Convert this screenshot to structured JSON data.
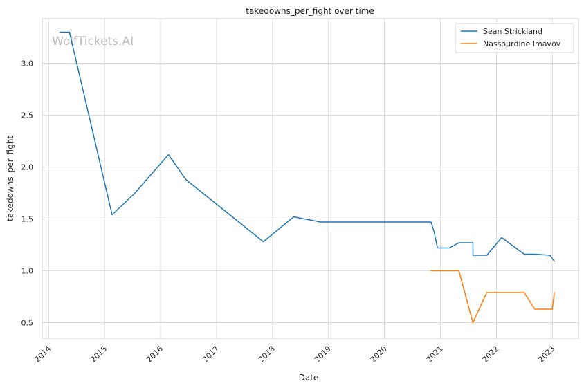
{
  "chart_data": {
    "type": "line",
    "title": "takedowns_per_fight over time",
    "xlabel": "Date",
    "ylabel": "takedowns_per_fight",
    "watermark": "WolfTickets.AI",
    "x_ticks": [
      "2014",
      "2015",
      "2016",
      "2017",
      "2018",
      "2019",
      "2020",
      "2021",
      "2022",
      "2023"
    ],
    "y_ticks": [
      "0.5",
      "1.0",
      "1.5",
      "2.0",
      "2.5",
      "3.0"
    ],
    "y_tick_values": [
      0.5,
      1.0,
      1.5,
      2.0,
      2.5,
      3.0
    ],
    "xlim": [
      "2013-11-20",
      "2023-06-20"
    ],
    "ylim": [
      0.35,
      3.43
    ],
    "grid": true,
    "legend_position": "top-right",
    "series": [
      {
        "name": "Sean Strickland",
        "color": "#1f77b4",
        "points": [
          [
            "2014-03-17",
            3.3
          ],
          [
            "2014-05-17",
            3.3
          ],
          [
            "2015-02-19",
            1.54
          ],
          [
            "2015-07-12",
            1.74
          ],
          [
            "2016-02-22",
            2.12
          ],
          [
            "2016-06-14",
            1.88
          ],
          [
            "2017-11-02",
            1.28
          ],
          [
            "2018-05-19",
            1.52
          ],
          [
            "2018-11-10",
            1.47
          ],
          [
            "2020-10-31",
            1.47
          ],
          [
            "2020-11-21",
            1.37
          ],
          [
            "2020-12-12",
            1.22
          ],
          [
            "2021-02-28",
            1.22
          ],
          [
            "2021-05-01",
            1.27
          ],
          [
            "2021-07-31",
            1.27
          ],
          [
            "2021-08-01",
            1.15
          ],
          [
            "2021-10-30",
            1.15
          ],
          [
            "2022-02-04",
            1.32
          ],
          [
            "2022-07-01",
            1.16
          ],
          [
            "2022-09-07",
            1.16
          ],
          [
            "2022-12-17",
            1.15
          ],
          [
            "2023-01-14",
            1.09
          ]
        ]
      },
      {
        "name": "Nassourdine Imavov",
        "color": "#ff7f0e",
        "points": [
          [
            "2020-10-31",
            1.0
          ],
          [
            "2021-05-01",
            1.0
          ],
          [
            "2021-07-31",
            0.5
          ],
          [
            "2021-10-30",
            0.79
          ],
          [
            "2022-07-01",
            0.79
          ],
          [
            "2022-09-07",
            0.63
          ],
          [
            "2022-12-31",
            0.63
          ],
          [
            "2023-01-14",
            0.79
          ]
        ]
      }
    ]
  }
}
